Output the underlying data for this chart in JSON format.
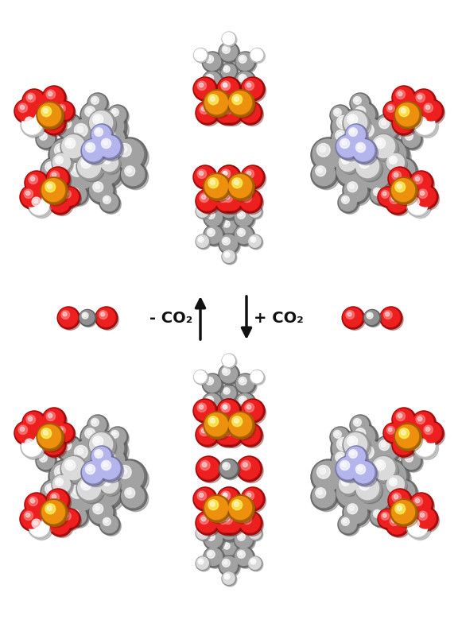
{
  "bg_color": "#ffffff",
  "arrow_color": "#111111",
  "text_color": "#111111",
  "minus_co2": "- CO₂",
  "plus_co2": "+ CO₂",
  "fig_width": 5.76,
  "fig_height": 7.99,
  "atom_gray": "#888888",
  "atom_lightgray": "#bbbbbb",
  "atom_darkgray": "#555555",
  "atom_red": "#cc1111",
  "atom_orange": "#cc7700",
  "atom_blue": "#9999cc",
  "atom_white": "#e8e8e8",
  "atom_carbon": "#777777"
}
